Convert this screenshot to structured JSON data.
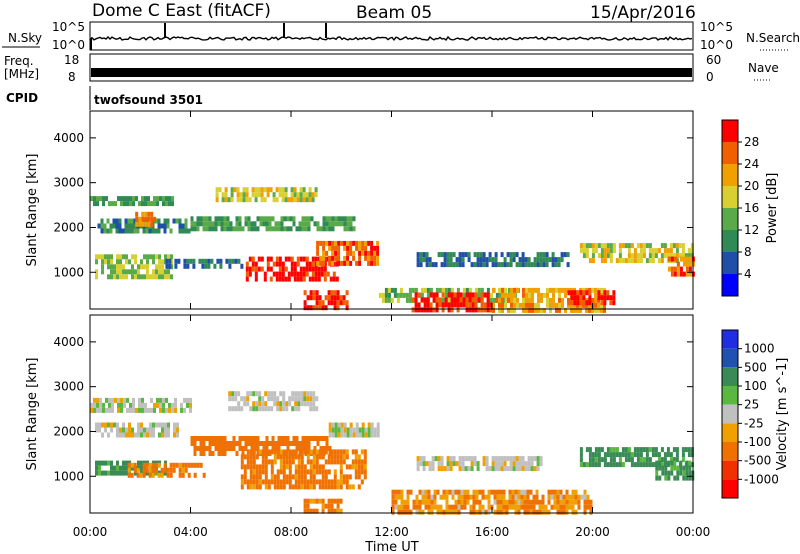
{
  "header": {
    "title": "Dome C East (fitACF)",
    "beam": "Beam 05",
    "date": "15/Apr/2016"
  },
  "param_panel": {
    "nsky_label": "N.Sky",
    "nsearch_label": "N.Search",
    "nsky_ticks": [
      "10^5",
      "10^0"
    ],
    "nsearch_ticks": [
      "10^5",
      "10^0"
    ],
    "freq_label_1": "Freq.",
    "freq_label_2": "[MHz]",
    "freq_ticks": [
      "18",
      "8"
    ],
    "nave_label": "Nave",
    "nave_ticks": [
      "60",
      "0"
    ],
    "cpid_label": "CPID",
    "cpid_value": "twofsound 3501"
  },
  "colors": {
    "power": [
      "#0000ff",
      "#1f4fa8",
      "#2f8a55",
      "#5aaa4a",
      "#d8d030",
      "#f0a000",
      "#f06000",
      "#ff0000"
    ],
    "velocity": [
      "#1e2ee0",
      "#2050b0",
      "#3a8a56",
      "#5ab840",
      "#c0c0c0",
      "#f0a000",
      "#f07000",
      "#f03000",
      "#ff0000"
    ]
  },
  "chart_data": [
    {
      "type": "heatmap",
      "title": "",
      "xlabel": "",
      "ylabel": "Slant Range [km]",
      "colorbar_label": "Power [dB]",
      "colorbar_ticks": [
        "4",
        "8",
        "12",
        "16",
        "20",
        "24",
        "28"
      ],
      "colorbar_range": [
        0,
        32
      ],
      "x_ticks": [
        "00:00",
        "04:00",
        "08:00",
        "12:00",
        "16:00",
        "20:00",
        "00:00"
      ],
      "x_range_hours": [
        0,
        24
      ],
      "y_ticks": [
        "1000",
        "2000",
        "3000",
        "4000"
      ],
      "y_range_km": [
        180,
        4600
      ],
      "regions": [
        {
          "t0": 0.0,
          "t1": 3.3,
          "r0": 2550,
          "r1": 2700,
          "value": 12
        },
        {
          "t0": 0.2,
          "t1": 3.2,
          "r0": 900,
          "r1": 1400,
          "value": 16
        },
        {
          "t0": 0.3,
          "t1": 4.0,
          "r0": 1900,
          "r1": 2200,
          "value": 10
        },
        {
          "t0": 1.8,
          "t1": 2.6,
          "r0": 2100,
          "r1": 2350,
          "value": 24
        },
        {
          "t0": 3.0,
          "t1": 6.0,
          "r0": 1150,
          "r1": 1300,
          "value": 8
        },
        {
          "t0": 5.0,
          "t1": 9.0,
          "r0": 2600,
          "r1": 2900,
          "value": 18
        },
        {
          "t0": 4.0,
          "t1": 10.5,
          "r0": 1950,
          "r1": 2250,
          "value": 12
        },
        {
          "t0": 6.2,
          "t1": 9.8,
          "r0": 800,
          "r1": 1350,
          "value": 30
        },
        {
          "t0": 9.0,
          "t1": 11.5,
          "r0": 1200,
          "r1": 1700,
          "value": 26
        },
        {
          "t0": 8.5,
          "t1": 10.2,
          "r0": 200,
          "r1": 600,
          "value": 29
        },
        {
          "t0": 13.0,
          "t1": 19.0,
          "r0": 1150,
          "r1": 1450,
          "value": 8
        },
        {
          "t0": 11.5,
          "t1": 17.0,
          "r0": 400,
          "r1": 650,
          "value": 14
        },
        {
          "t0": 12.8,
          "t1": 16.0,
          "r0": 200,
          "r1": 550,
          "value": 29
        },
        {
          "t0": 16.0,
          "t1": 20.5,
          "r0": 200,
          "r1": 650,
          "value": 22
        },
        {
          "t0": 19.0,
          "t1": 20.8,
          "r0": 300,
          "r1": 600,
          "value": 29
        },
        {
          "t0": 19.5,
          "t1": 24.0,
          "r0": 1300,
          "r1": 1650,
          "value": 18
        },
        {
          "t0": 23.0,
          "t1": 24.0,
          "r0": 1000,
          "r1": 1350,
          "value": 26
        }
      ]
    },
    {
      "type": "heatmap",
      "title": "",
      "xlabel": "Time UT",
      "ylabel": "Slant Range [km]",
      "colorbar_label": "Velocity [m s^-1]",
      "colorbar_ticks": [
        "1000",
        "500",
        "100",
        "25",
        "-25",
        "-100",
        "-500",
        "-1000"
      ],
      "colorbar_range": [
        -1500,
        1500
      ],
      "x_ticks": [
        "00:00",
        "04:00",
        "08:00",
        "12:00",
        "16:00",
        "20:00",
        "00:00"
      ],
      "x_range_hours": [
        0,
        24
      ],
      "y_ticks": [
        "1000",
        "2000",
        "3000",
        "4000"
      ],
      "y_range_km": [
        180,
        4600
      ],
      "regions": [
        {
          "t0": 0.0,
          "t1": 4.0,
          "r0": 2450,
          "r1": 2750,
          "value": 0
        },
        {
          "t0": 0.2,
          "t1": 3.5,
          "r0": 1950,
          "r1": 2200,
          "value": 0
        },
        {
          "t0": 0.2,
          "t1": 3.0,
          "r0": 1050,
          "r1": 1350,
          "value": 200
        },
        {
          "t0": 1.5,
          "t1": 4.5,
          "r0": 1000,
          "r1": 1300,
          "value": -200
        },
        {
          "t0": 4.0,
          "t1": 9.5,
          "r0": 1500,
          "r1": 1900,
          "value": -300
        },
        {
          "t0": 5.5,
          "t1": 9.0,
          "r0": 2500,
          "r1": 2900,
          "value": 0
        },
        {
          "t0": 6.0,
          "t1": 11.0,
          "r0": 800,
          "r1": 1600,
          "value": -200
        },
        {
          "t0": 9.5,
          "t1": 11.5,
          "r0": 1900,
          "r1": 2200,
          "value": 0
        },
        {
          "t0": 8.5,
          "t1": 10.0,
          "r0": 200,
          "r1": 500,
          "value": -200
        },
        {
          "t0": 13.0,
          "t1": 18.0,
          "r0": 1150,
          "r1": 1450,
          "value": 0
        },
        {
          "t0": 12.0,
          "t1": 20.0,
          "r0": 200,
          "r1": 700,
          "value": -100
        },
        {
          "t0": 19.5,
          "t1": 24.0,
          "r0": 1300,
          "r1": 1650,
          "value": 200
        },
        {
          "t0": 22.5,
          "t1": 24.0,
          "r0": 1000,
          "r1": 1350,
          "value": 150
        }
      ]
    }
  ]
}
